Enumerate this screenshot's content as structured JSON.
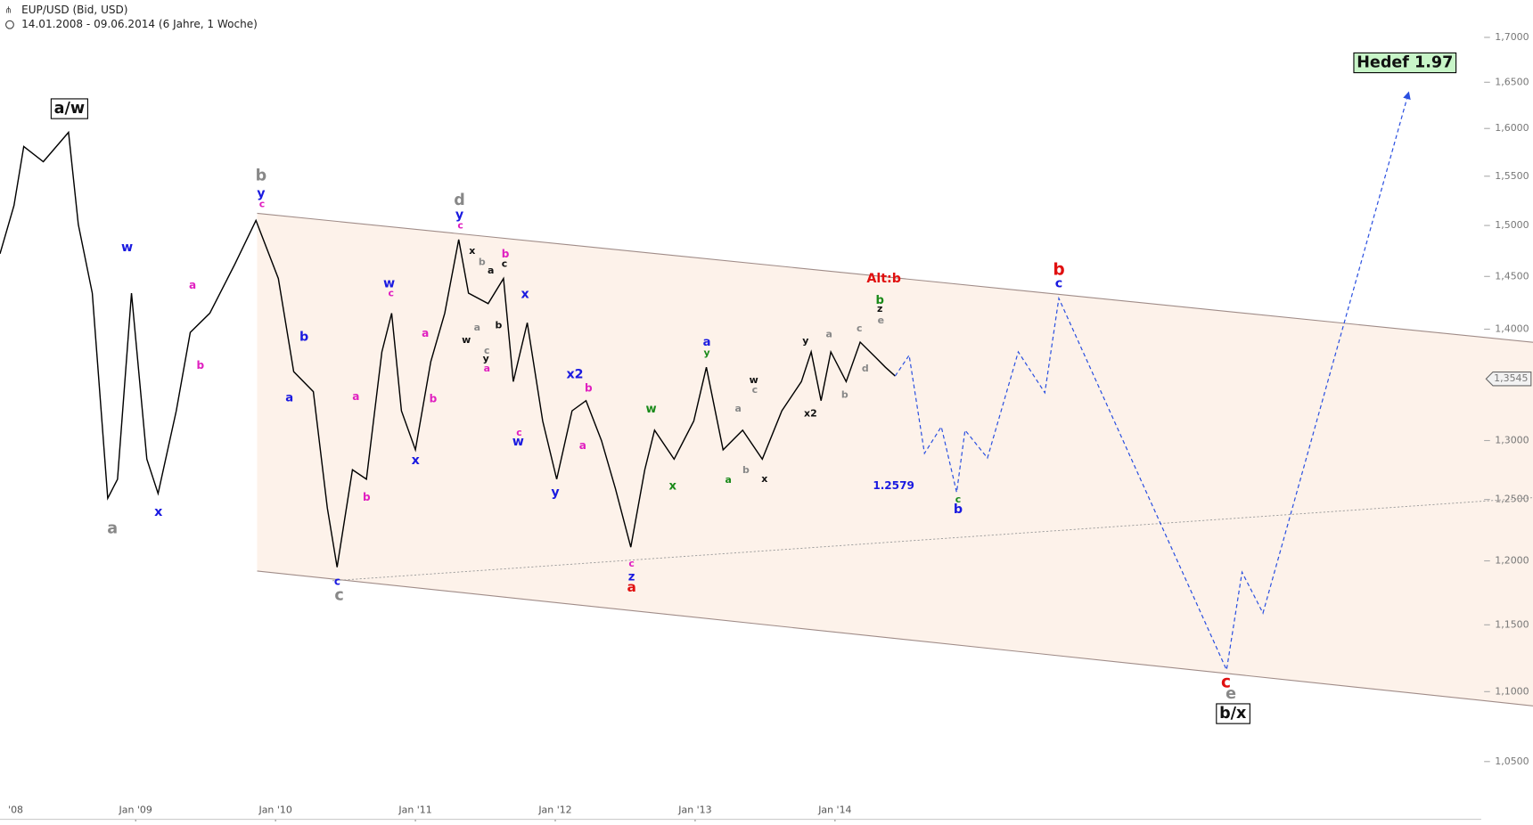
{
  "chart_data": {
    "type": "line",
    "title": "EUP/USD (Bid, USD)",
    "subtitle": "14.01.2008 - 09.06.2014 (6 Jahre, 1 Woche)",
    "ylog": true,
    "xlim": [
      2008.03,
      2018.62
    ],
    "ylim": [
      1.0237,
      1.7425
    ],
    "xticks": [
      {
        "value": 2008,
        "label": "'08"
      },
      {
        "value": 2009,
        "label": "Jan '09"
      },
      {
        "value": 2010,
        "label": "Jan '10"
      },
      {
        "value": 2011,
        "label": "Jan '11"
      },
      {
        "value": 2012,
        "label": "Jan '12"
      },
      {
        "value": 2013,
        "label": "Jan '13"
      },
      {
        "value": 2014,
        "label": "Jan '14"
      }
    ],
    "yticks": [
      {
        "value": 1.05,
        "label": "1,0500"
      },
      {
        "value": 1.1,
        "label": "1,1000"
      },
      {
        "value": 1.15,
        "label": "1,1500"
      },
      {
        "value": 1.2,
        "label": "1,2000"
      },
      {
        "value": 1.25,
        "label": "1,2500"
      },
      {
        "value": 1.3,
        "label": "1,3000"
      },
      {
        "value": 1.4,
        "label": "1,4000"
      },
      {
        "value": 1.45,
        "label": "1,4500"
      },
      {
        "value": 1.5,
        "label": "1,5000"
      },
      {
        "value": 1.55,
        "label": "1,5500"
      },
      {
        "value": 1.6,
        "label": "1,6000"
      },
      {
        "value": 1.65,
        "label": "1,6500"
      },
      {
        "value": 1.7,
        "label": "1,7000"
      }
    ],
    "last_price": {
      "value": 1.3545,
      "label": "1,3545"
    },
    "series": [
      {
        "color": "#000000",
        "dashed": false,
        "x": [
          2008.03,
          2008.13,
          2008.2,
          2008.34,
          2008.52,
          2008.59,
          2008.69,
          2008.8,
          2008.87,
          2008.97,
          2009.08,
          2009.16,
          2009.29,
          2009.39,
          2009.53,
          2009.71,
          2009.86,
          2010.02,
          2010.13,
          2010.27,
          2010.37,
          2010.44,
          2010.55,
          2010.65,
          2010.76,
          2010.83,
          2010.9,
          2011.0,
          2011.11,
          2011.21,
          2011.31,
          2011.38,
          2011.52,
          2011.63,
          2011.7,
          2011.8,
          2011.91,
          2012.01,
          2012.12,
          2012.22,
          2012.33,
          2012.43,
          2012.54,
          2012.64,
          2012.71,
          2012.85,
          2012.99,
          2013.08,
          2013.2,
          2013.34,
          2013.48,
          2013.62,
          2013.76,
          2013.83,
          2013.9,
          2013.97,
          2014.08,
          2014.18,
          2014.29,
          2014.36,
          2014.43
        ],
        "values": [
          1.472,
          1.52,
          1.581,
          1.565,
          1.596,
          1.501,
          1.434,
          1.251,
          1.267,
          1.434,
          1.284,
          1.255,
          1.326,
          1.397,
          1.415,
          1.462,
          1.505,
          1.448,
          1.361,
          1.343,
          1.243,
          1.195,
          1.275,
          1.267,
          1.379,
          1.415,
          1.326,
          1.292,
          1.37,
          1.415,
          1.486,
          1.434,
          1.424,
          1.448,
          1.352,
          1.406,
          1.317,
          1.267,
          1.326,
          1.335,
          1.3,
          1.259,
          1.211,
          1.275,
          1.309,
          1.284,
          1.317,
          1.365,
          1.292,
          1.309,
          1.284,
          1.326,
          1.352,
          1.379,
          1.335,
          1.379,
          1.352,
          1.388,
          1.374,
          1.365,
          1.357
        ]
      },
      {
        "color": "#2a4fe0",
        "dashed": true,
        "x": [
          2014.43,
          2014.53,
          2014.64,
          2014.76,
          2014.87,
          2014.93,
          2015.09,
          2015.31,
          2015.5,
          2015.6,
          2016.8,
          2016.91,
          2017.06,
          2018.1
        ],
        "values": [
          1.357,
          1.376,
          1.289,
          1.312,
          1.256,
          1.309,
          1.285,
          1.379,
          1.342,
          1.429,
          1.116,
          1.191,
          1.159,
          1.638
        ]
      }
    ],
    "wave_labels": [
      "a/w",
      "w",
      "a",
      "x",
      "a",
      "b",
      "b",
      "y",
      "c",
      "b",
      "a",
      "a",
      "b",
      "c",
      "c",
      "w",
      "c",
      "x",
      "b",
      "a",
      "d",
      "y",
      "c",
      "x",
      "b",
      "a",
      "c",
      "b",
      "a",
      "w",
      "b",
      "c",
      "y",
      "a",
      "x",
      "c",
      "w",
      "x2",
      "b",
      "a",
      "y",
      "c",
      "z",
      "a",
      "w",
      "x",
      "a",
      "y",
      "a",
      "a",
      "w",
      "c",
      "b",
      "x",
      "x2",
      "y",
      "a",
      "b",
      "c",
      "d",
      "e",
      "z",
      "b",
      "Alt:b",
      "1.2579",
      "c",
      "b",
      "b",
      "c",
      "c",
      "e",
      "b/x",
      "Hedef 1.97"
    ]
  }
}
